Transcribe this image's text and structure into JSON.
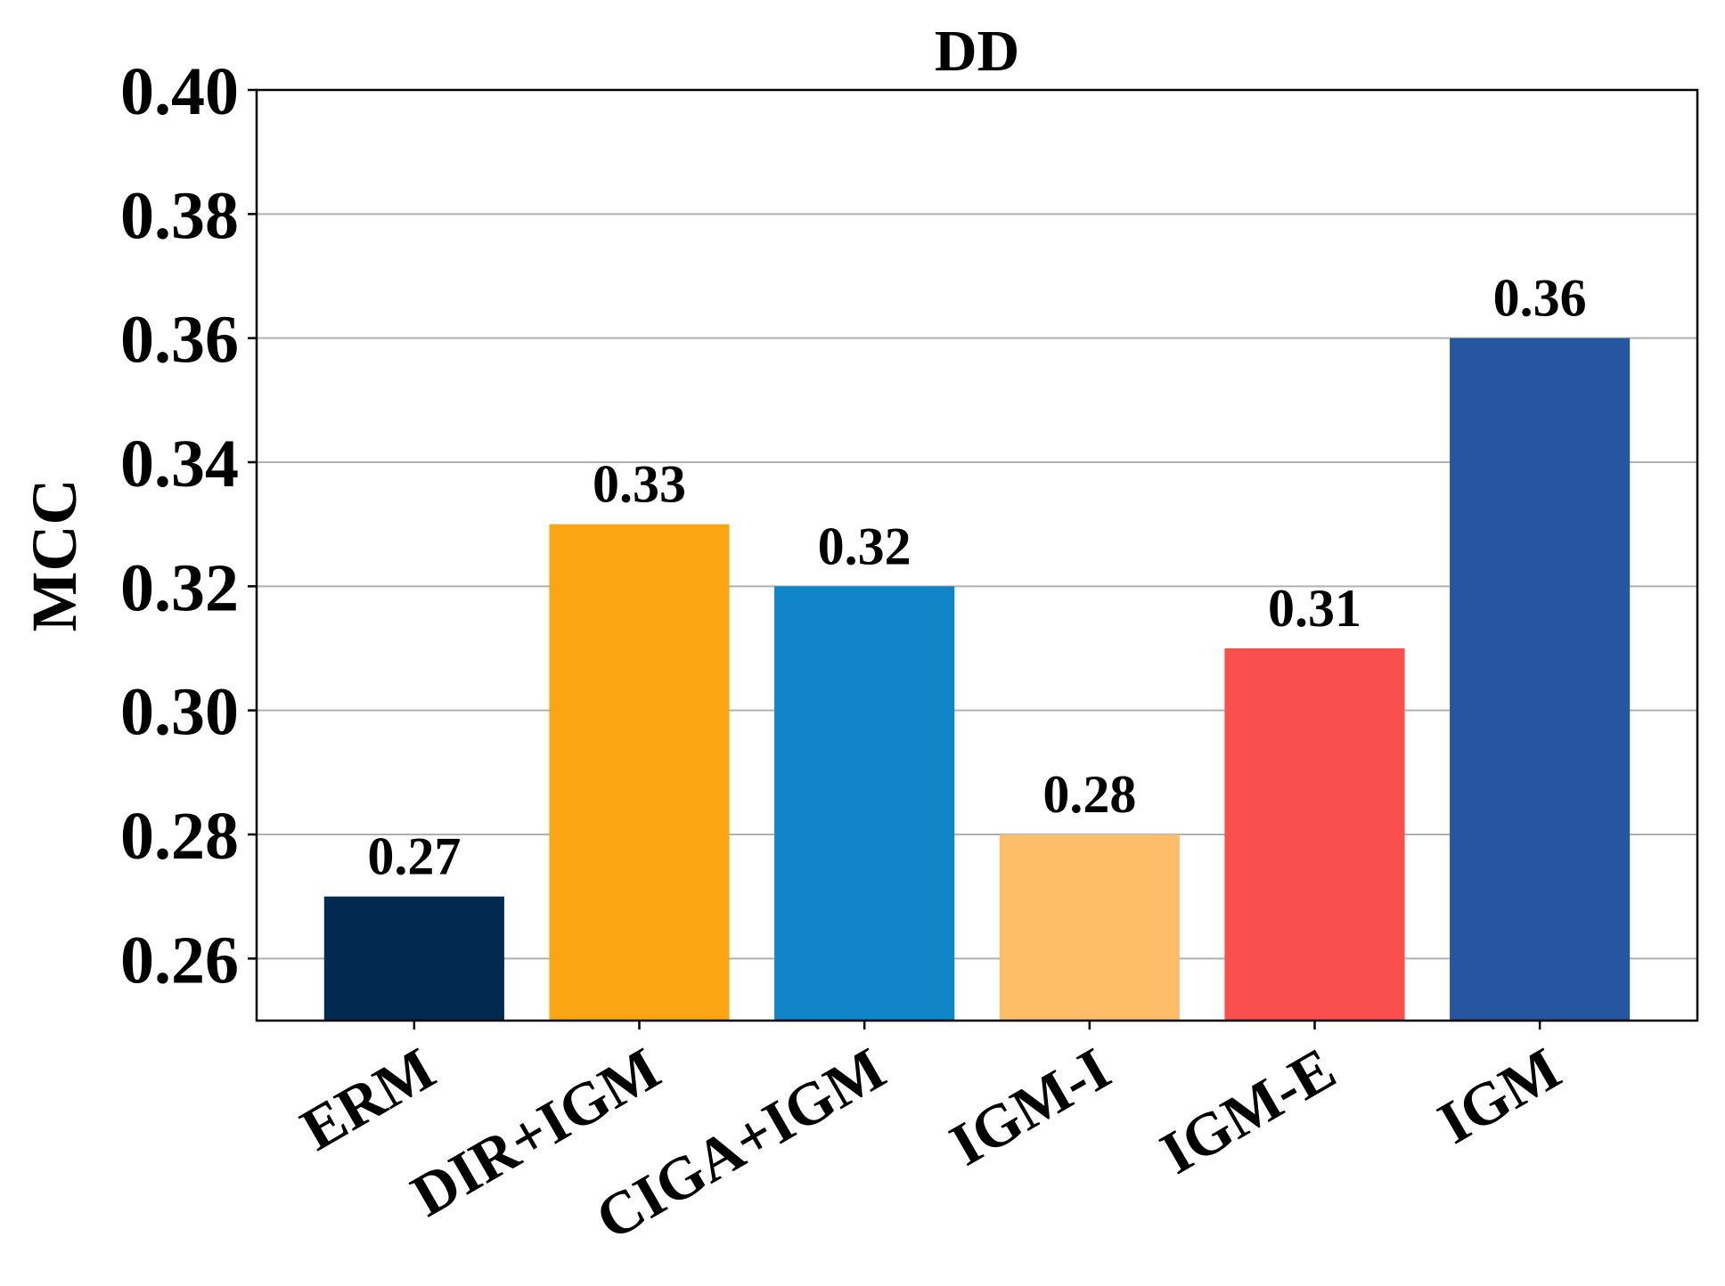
{
  "chart_data": {
    "type": "bar",
    "title": "DD",
    "xlabel": "",
    "ylabel": "MCC",
    "categories": [
      "ERM",
      "DIR+IGM",
      "CIGA+IGM",
      "IGM-I",
      "IGM-E",
      "IGM"
    ],
    "values": [
      0.27,
      0.33,
      0.32,
      0.28,
      0.31,
      0.36
    ],
    "value_labels": [
      "0.27",
      "0.33",
      "0.32",
      "0.28",
      "0.31",
      "0.36"
    ],
    "colors": [
      "#022a51",
      "#fba515",
      "#0f84c6",
      "#fdbd69",
      "#f94f4f",
      "#26569f"
    ],
    "ylim": [
      0.25,
      0.4
    ],
    "yticks": [
      0.26,
      0.28,
      0.3,
      0.32,
      0.34,
      0.36,
      0.38,
      0.4
    ],
    "ytick_labels": [
      "0.26",
      "0.28",
      "0.30",
      "0.32",
      "0.34",
      "0.36",
      "0.38",
      "0.40"
    ],
    "grid": true,
    "grid_axis": "y"
  }
}
